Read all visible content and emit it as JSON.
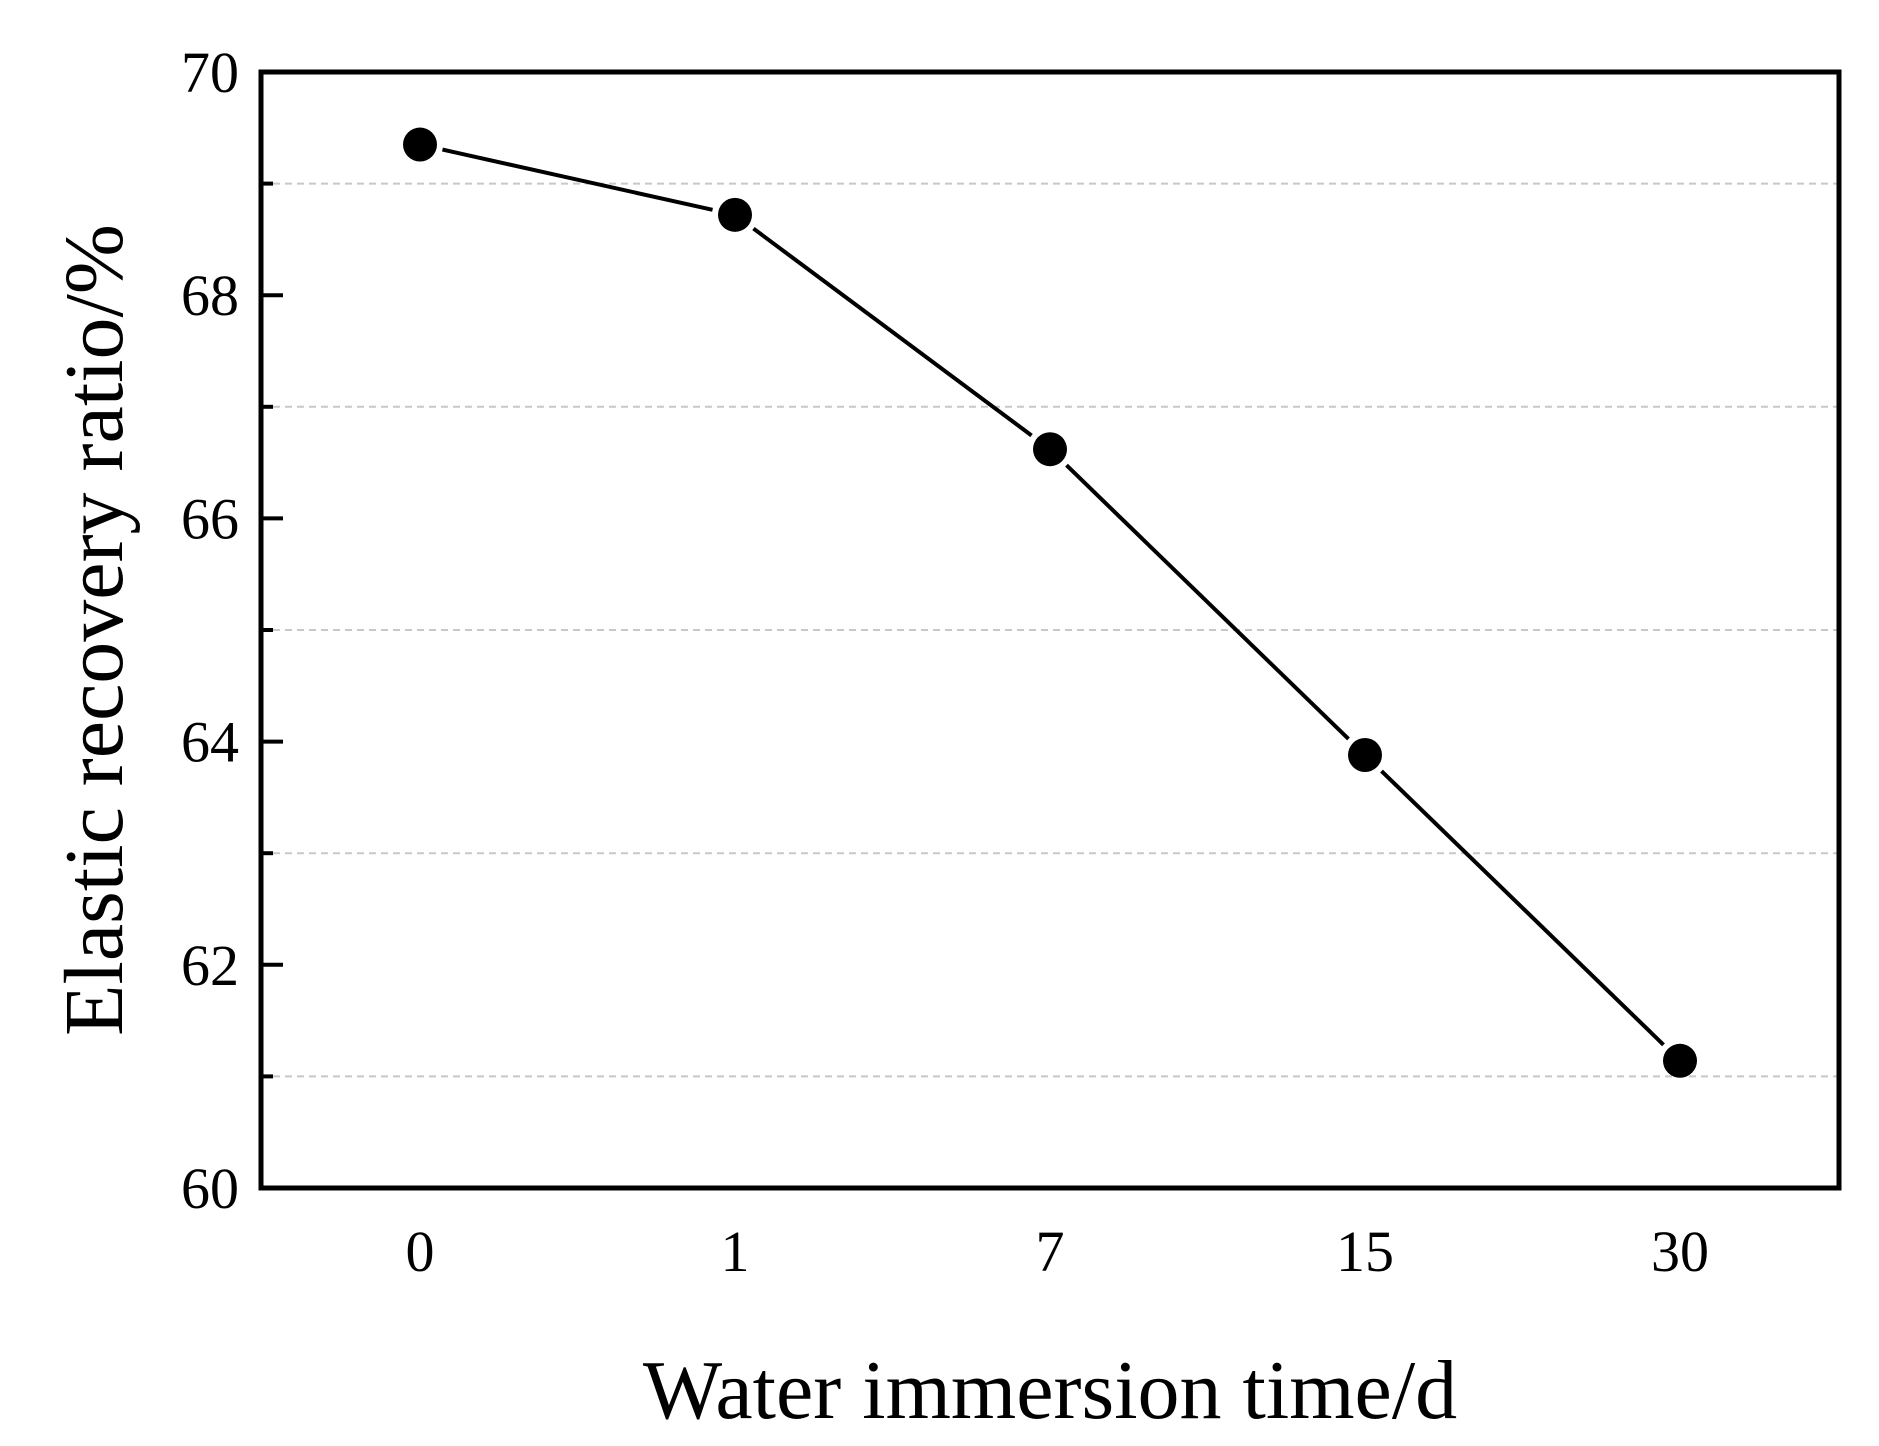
{
  "chart_data": {
    "type": "line",
    "title": "",
    "xlabel": "Water immersion time/d",
    "ylabel": "Elastic recovery ratio/%",
    "categories": [
      "0",
      "1",
      "7",
      "15",
      "30"
    ],
    "series": [
      {
        "name": "Elastic recovery ratio",
        "values": [
          69.35,
          68.72,
          66.62,
          63.88,
          61.14
        ]
      }
    ],
    "ylim": [
      60,
      70
    ],
    "yticks_major": [
      60,
      62,
      64,
      66,
      68,
      70
    ],
    "yticks_labels": [
      "60",
      "62",
      "64",
      "66",
      "68",
      "70"
    ],
    "ygrid_minor": [
      61,
      63,
      65,
      67,
      69
    ],
    "grid": "horizontal dashed at minor ticks",
    "legend": "none",
    "colors": {
      "line": "#000000",
      "marker": "#000000",
      "grid": "#c8c8c8",
      "frame": "#000000"
    }
  }
}
